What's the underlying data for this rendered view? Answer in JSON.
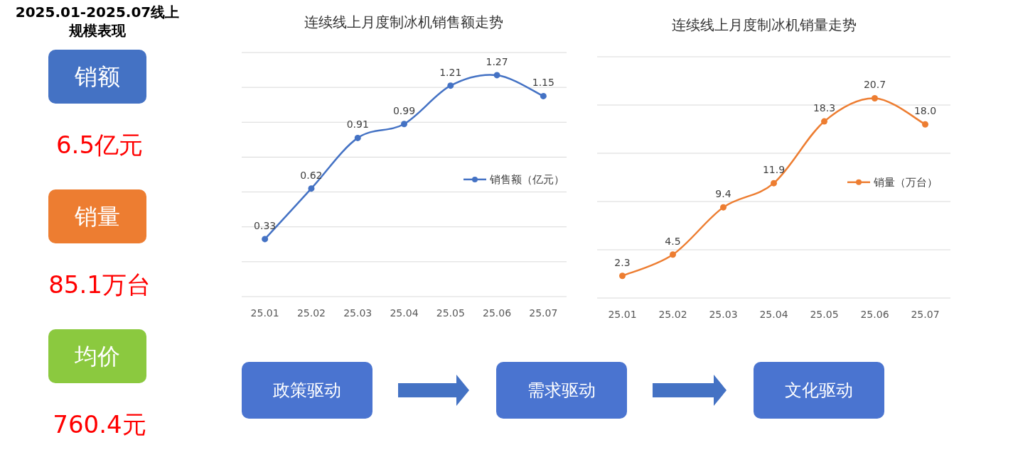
{
  "chart_data": [
    {
      "type": "other",
      "title": "2025.01-2025.07线上规模表现",
      "annotations": [
        "销额",
        "6.5亿元",
        "销量",
        "85.1万台",
        "均价",
        "760.4元"
      ],
      "colors": [
        "#4472c4",
        "#ed7d31",
        "#8bc93f"
      ]
    },
    {
      "type": "line",
      "title": "连续线上月度制冰机销售额走势",
      "categories": [
        "25.01",
        "25.02",
        "25.03",
        "25.04",
        "25.05",
        "25.06",
        "25.07"
      ],
      "series": [
        {
          "name": "销售额（亿元）",
          "color": "#4472c4",
          "values": [
            0.33,
            0.62,
            0.91,
            0.99,
            1.21,
            1.27,
            1.15
          ]
        }
      ],
      "ylim": [
        0,
        1.4
      ],
      "yticks": [
        {
          "value": 0,
          "label": null
        },
        {
          "value": 0.2,
          "label": null
        },
        {
          "value": 0.4,
          "label": null
        },
        {
          "value": 0.6,
          "label": null
        },
        {
          "value": 0.8,
          "label": null
        },
        {
          "value": 1.0,
          "label": null
        },
        {
          "value": 1.2,
          "label": null
        },
        {
          "value": 1.4,
          "label": null
        }
      ],
      "grid": "y",
      "legend": "right",
      "marker": "circle",
      "data_labels": true,
      "tick_labels": "x"
    },
    {
      "type": "line",
      "title": "连续线上月度制冰机销量走势",
      "categories": [
        "25.01",
        "25.02",
        "25.03",
        "25.04",
        "25.05",
        "25.06",
        "25.07"
      ],
      "series": [
        {
          "name": "销量（万台）",
          "color": "#ed7d31",
          "values": [
            2.3,
            4.5,
            9.4,
            11.9,
            18.3,
            20.7,
            18.0
          ],
          "value_labels": [
            "2.3",
            "4.5",
            "9.4",
            "11.9",
            "18.3",
            "20.7",
            "18.0"
          ]
        }
      ],
      "ylim": [
        0,
        25
      ],
      "yticks": [
        {
          "value": 0,
          "label": null
        },
        {
          "value": 5,
          "label": null
        },
        {
          "value": 10,
          "label": null
        },
        {
          "value": 15,
          "label": null
        },
        {
          "value": 20,
          "label": null
        },
        {
          "value": 25,
          "label": null
        }
      ],
      "grid": "y",
      "legend": "right",
      "marker": "circle",
      "tick_labels": "x"
    },
    {
      "type": "other",
      "annotations": [
        "政策驱动",
        "需求驱动",
        "文化驱动"
      ],
      "colors": [
        "#4a74d0",
        "#4a74d0",
        "#4a74d0"
      ]
    }
  ]
}
